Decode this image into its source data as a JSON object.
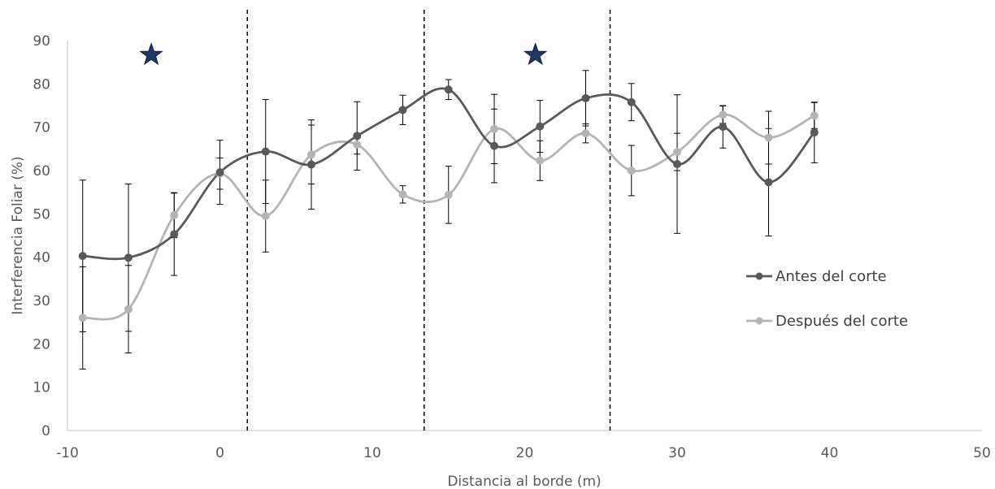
{
  "chart_data": {
    "type": "line",
    "title": "",
    "xlabel": "Distancia al borde (m)",
    "ylabel": "Interferencia Foliar (%)",
    "xlim": [
      -10,
      50
    ],
    "ylim": [
      0,
      90
    ],
    "x_ticks": [
      -10,
      0,
      10,
      20,
      30,
      40,
      50
    ],
    "y_ticks": [
      0,
      10,
      20,
      30,
      40,
      50,
      60,
      70,
      80,
      90
    ],
    "grid": false,
    "smooth": true,
    "legend_position": "right",
    "x": [
      -9,
      -6,
      -3,
      0,
      3,
      6,
      9,
      12,
      15,
      18,
      21,
      24,
      27,
      30,
      33,
      36,
      39
    ],
    "series": [
      {
        "name": "Antes del corte",
        "color": "#595959",
        "values": [
          40.3,
          39.9,
          45.3,
          59.6,
          64.4,
          61.4,
          68.0,
          74.0,
          78.7,
          65.7,
          70.2,
          76.7,
          75.8,
          61.5,
          70.1,
          57.3,
          68.8
        ],
        "error": [
          17.5,
          17.0,
          9.5,
          7.4,
          12.0,
          10.3,
          7.9,
          3.4,
          2.3,
          8.5,
          6.0,
          6.4,
          4.3,
          16.0,
          4.9,
          12.4,
          7.0
        ]
      },
      {
        "name": "Después del corte",
        "color": "#b4b4b4",
        "values": [
          26.0,
          28.0,
          49.7,
          59.3,
          49.5,
          63.7,
          66.0,
          54.5,
          54.4,
          69.6,
          62.3,
          68.6,
          60.0,
          64.3,
          72.9,
          67.6,
          72.7
        ],
        "error": [
          11.8,
          10.1,
          5.2,
          3.6,
          8.3,
          6.8,
          2.2,
          2.0,
          6.6,
          8.0,
          4.6,
          2.2,
          5.8,
          4.3,
          2.0,
          6.1,
          3.0
        ]
      }
    ],
    "vertical_lines_x": [
      1.8,
      13.4,
      25.6
    ],
    "star_markers_x": [
      -4.5,
      20.7
    ],
    "star_markers_y": 86.7,
    "star_color": "#1f3864"
  }
}
